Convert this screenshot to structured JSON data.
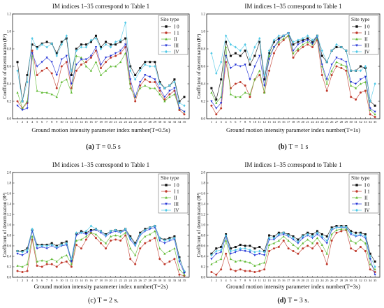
{
  "figure": {
    "legend_title": "Site type",
    "legend_entries": [
      "I 0",
      "I 1",
      "II",
      "III",
      "IV"
    ]
  },
  "colors": {
    "I0": "#111111",
    "I1": "#c0392b",
    "II": "#5cb82e",
    "III": "#1f2fd6",
    "IV": "#4fc8e6"
  },
  "chart_data": [
    {
      "type": "line",
      "panel_caption_bold": "(a)",
      "panel_caption_rest": "T = 0.5 s",
      "title": "IM indices 1–35 correspond to Table 1",
      "xlabel": "Ground motion intensity parameter index number(T=0.5s)",
      "ylabel": "Coefficient of determination (R²)",
      "ylim": [
        0,
        1.2
      ],
      "yticks": [
        "0.0",
        "0.2",
        "0.4",
        "0.6",
        "0.8",
        "1.0",
        "1.2"
      ],
      "x": [
        1,
        2,
        3,
        4,
        5,
        6,
        7,
        8,
        9,
        10,
        11,
        12,
        13,
        14,
        15,
        16,
        17,
        18,
        19,
        20,
        21,
        22,
        23,
        24,
        25,
        26,
        27,
        28,
        29,
        30,
        31,
        32,
        33,
        34,
        35
      ],
      "series": [
        {
          "name": "I 0",
          "values": [
            0.65,
            0.2,
            0.5,
            0.85,
            0.82,
            0.86,
            0.88,
            0.86,
            0.75,
            0.88,
            0.92,
            0.5,
            0.8,
            0.85,
            0.85,
            0.88,
            0.95,
            0.82,
            0.88,
            0.85,
            0.85,
            0.88,
            0.92,
            0.6,
            0.5,
            0.58,
            0.65,
            0.65,
            0.65,
            0.42,
            0.35,
            0.38,
            0.45,
            0.2,
            0.25
          ]
        },
        {
          "name": "I 1",
          "values": [
            0.2,
            0.12,
            0.18,
            0.78,
            0.5,
            0.55,
            0.58,
            0.52,
            0.35,
            0.6,
            0.65,
            0.35,
            0.55,
            0.62,
            0.65,
            0.7,
            0.78,
            0.58,
            0.65,
            0.7,
            0.72,
            0.75,
            0.82,
            0.4,
            0.2,
            0.38,
            0.45,
            0.42,
            0.42,
            0.32,
            0.22,
            0.28,
            0.32,
            0.1,
            0.05
          ]
        },
        {
          "name": "II",
          "values": [
            0.3,
            0.12,
            0.2,
            0.72,
            0.32,
            0.3,
            0.3,
            0.28,
            0.25,
            0.42,
            0.45,
            0.3,
            0.72,
            0.7,
            0.6,
            0.55,
            0.65,
            0.5,
            0.55,
            0.6,
            0.6,
            0.65,
            0.75,
            0.35,
            0.25,
            0.35,
            0.38,
            0.35,
            0.35,
            0.28,
            0.2,
            0.25,
            0.28,
            0.12,
            0.08
          ]
        },
        {
          "name": "III",
          "values": [
            0.15,
            0.1,
            0.12,
            0.75,
            0.6,
            0.65,
            0.7,
            0.65,
            0.5,
            0.68,
            0.72,
            0.4,
            0.62,
            0.68,
            0.68,
            0.72,
            0.82,
            0.62,
            0.7,
            0.72,
            0.75,
            0.78,
            0.85,
            0.45,
            0.25,
            0.42,
            0.5,
            0.48,
            0.45,
            0.35,
            0.25,
            0.32,
            0.35,
            0.12,
            0.08
          ]
        },
        {
          "name": "IV",
          "values": [
            0.55,
            0.2,
            0.42,
            0.92,
            0.8,
            0.85,
            0.82,
            0.86,
            0.72,
            0.85,
            0.95,
            0.55,
            0.78,
            0.82,
            0.82,
            0.9,
            0.92,
            0.8,
            0.85,
            0.82,
            0.88,
            0.9,
            1.1,
            0.55,
            0.45,
            0.55,
            0.62,
            0.6,
            0.6,
            0.4,
            0.35,
            0.38,
            0.42,
            0.18,
            0.15
          ]
        }
      ]
    },
    {
      "type": "line",
      "panel_caption_bold": "(b)",
      "panel_caption_rest": "T = 1 s",
      "title": "IM indices 1–35 correspond to Table 1",
      "xlabel": "Ground motion intensity parameter index number(T=1s)",
      "ylabel": "Coefficient of determination (R²)",
      "ylim": [
        0,
        1.2
      ],
      "yticks": [
        "0.0",
        "0.2",
        "0.4",
        "0.6",
        "0.8",
        "1.0",
        "1.2"
      ],
      "x": [
        1,
        2,
        3,
        4,
        5,
        6,
        7,
        8,
        9,
        10,
        11,
        12,
        13,
        14,
        15,
        16,
        17,
        18,
        19,
        20,
        21,
        22,
        23,
        24,
        25,
        26,
        27,
        28,
        29,
        30,
        31,
        32,
        33,
        34,
        35
      ],
      "series": [
        {
          "name": "I 0",
          "values": [
            0.35,
            0.22,
            0.45,
            0.88,
            0.72,
            0.75,
            0.72,
            0.78,
            0.62,
            0.72,
            0.88,
            0.45,
            0.75,
            0.88,
            0.92,
            0.95,
            0.98,
            0.85,
            0.88,
            0.9,
            0.92,
            0.88,
            0.95,
            0.72,
            0.65,
            0.78,
            0.82,
            0.82,
            0.78,
            0.55,
            0.55,
            0.6,
            0.58,
            0.2,
            0.15
          ]
        },
        {
          "name": "I 1",
          "values": [
            0.15,
            0.05,
            0.12,
            0.65,
            0.35,
            0.4,
            0.42,
            0.38,
            0.25,
            0.45,
            0.5,
            0.3,
            0.55,
            0.75,
            0.85,
            0.9,
            0.95,
            0.7,
            0.78,
            0.82,
            0.85,
            0.82,
            0.9,
            0.5,
            0.32,
            0.5,
            0.6,
            0.58,
            0.55,
            0.25,
            0.22,
            0.3,
            0.32,
            0.05,
            0.02
          ]
        },
        {
          "name": "II",
          "values": [
            0.3,
            0.18,
            0.25,
            0.82,
            0.28,
            0.25,
            0.25,
            0.3,
            0.28,
            0.45,
            0.55,
            0.3,
            0.72,
            0.82,
            0.88,
            0.92,
            0.95,
            0.75,
            0.8,
            0.85,
            0.88,
            0.85,
            0.92,
            0.6,
            0.4,
            0.55,
            0.65,
            0.62,
            0.6,
            0.38,
            0.35,
            0.4,
            0.42,
            0.1,
            0.05
          ]
        },
        {
          "name": "III",
          "values": [
            0.2,
            0.12,
            0.18,
            0.72,
            0.58,
            0.62,
            0.6,
            0.62,
            0.45,
            0.6,
            0.72,
            0.38,
            0.68,
            0.82,
            0.9,
            0.95,
            0.98,
            0.78,
            0.85,
            0.88,
            0.9,
            0.86,
            0.94,
            0.62,
            0.45,
            0.62,
            0.7,
            0.68,
            0.65,
            0.42,
            0.4,
            0.45,
            0.48,
            0.12,
            0.08
          ]
        },
        {
          "name": "IV",
          "values": [
            0.75,
            0.52,
            0.65,
            0.95,
            0.85,
            0.82,
            0.78,
            0.85,
            0.68,
            0.82,
            0.92,
            0.5,
            0.78,
            0.9,
            0.95,
            0.95,
            0.98,
            0.88,
            0.9,
            0.92,
            0.95,
            0.9,
            0.95,
            0.78,
            0.65,
            0.78,
            0.85,
            0.82,
            0.78,
            0.55,
            0.55,
            0.55,
            0.6,
            0.2,
            0.4
          ]
        }
      ]
    },
    {
      "type": "line",
      "panel_caption_bold": "",
      "panel_caption_rest": "(c) T = 2 s.",
      "title": "IM indices 1–35 correspond to Table 1",
      "xlabel": "Ground motion intensity parameter index number(T=2s)",
      "ylabel": "Coefficient of determination (R²)",
      "ylim": [
        0,
        2.0
      ],
      "yticks": [
        "0.0",
        "0.2",
        "0.4",
        "0.6",
        "0.8",
        "1.0",
        "1.2",
        "1.4",
        "1.6",
        "1.8",
        "2.0"
      ],
      "x": [
        1,
        2,
        3,
        4,
        5,
        6,
        7,
        8,
        9,
        10,
        11,
        12,
        13,
        14,
        15,
        16,
        17,
        18,
        19,
        20,
        21,
        22,
        23,
        24,
        25,
        26,
        27,
        28,
        29,
        30,
        31,
        32,
        33,
        34,
        35
      ],
      "series": [
        {
          "name": "I 0",
          "values": [
            0.5,
            0.5,
            0.55,
            0.9,
            0.62,
            0.62,
            0.62,
            0.65,
            0.6,
            0.65,
            0.68,
            0.32,
            0.82,
            0.88,
            0.85,
            0.9,
            0.92,
            0.88,
            0.82,
            0.88,
            0.9,
            0.88,
            0.92,
            0.78,
            0.65,
            0.85,
            0.92,
            0.95,
            0.98,
            0.75,
            0.72,
            0.75,
            0.78,
            0.38,
            0.1
          ]
        },
        {
          "name": "I 1",
          "values": [
            0.12,
            0.1,
            0.12,
            0.72,
            0.22,
            0.2,
            0.25,
            0.25,
            0.2,
            0.28,
            0.3,
            0.2,
            0.62,
            0.55,
            0.72,
            0.85,
            0.75,
            0.65,
            0.55,
            0.7,
            0.72,
            0.7,
            0.8,
            0.35,
            0.25,
            0.55,
            0.65,
            0.7,
            0.75,
            0.35,
            0.25,
            0.3,
            0.35,
            0.05,
            0.03
          ]
        },
        {
          "name": "II",
          "values": [
            0.22,
            0.2,
            0.25,
            0.78,
            0.3,
            0.32,
            0.3,
            0.35,
            0.3,
            0.38,
            0.42,
            0.25,
            0.7,
            0.72,
            0.78,
            0.85,
            0.82,
            0.72,
            0.65,
            0.78,
            0.8,
            0.78,
            0.85,
            0.55,
            0.42,
            0.68,
            0.78,
            0.82,
            0.88,
            0.55,
            0.45,
            0.5,
            0.55,
            0.15,
            0.05
          ]
        },
        {
          "name": "III",
          "values": [
            0.45,
            0.42,
            0.48,
            0.88,
            0.55,
            0.58,
            0.55,
            0.6,
            0.55,
            0.6,
            0.62,
            0.3,
            0.8,
            0.85,
            0.82,
            0.88,
            0.9,
            0.85,
            0.78,
            0.85,
            0.88,
            0.85,
            0.9,
            0.72,
            0.6,
            0.8,
            0.88,
            0.92,
            0.95,
            0.7,
            0.65,
            0.7,
            0.72,
            0.3,
            0.08
          ]
        },
        {
          "name": "IV",
          "values": [
            0.5,
            0.48,
            0.52,
            0.92,
            0.6,
            0.6,
            0.6,
            0.62,
            0.58,
            0.62,
            0.65,
            0.35,
            0.85,
            0.85,
            0.88,
            0.98,
            0.92,
            0.88,
            0.8,
            0.88,
            0.9,
            0.86,
            0.92,
            0.75,
            0.62,
            0.82,
            0.9,
            0.95,
            0.98,
            0.75,
            0.7,
            0.72,
            0.75,
            0.35,
            0.12
          ]
        }
      ]
    },
    {
      "type": "line",
      "panel_caption_bold": "(d)",
      "panel_caption_rest": "T = 3 s.",
      "title": "IM indices 1–35 correspond to Table 1",
      "xlabel": "Ground motion intensity parameter index number(T=3s)",
      "ylabel": "Coefficient of determination (R²)",
      "ylim": [
        0,
        2.0
      ],
      "yticks": [
        "0.0",
        "0.2",
        "0.4",
        "0.6",
        "0.8",
        "1.0",
        "1.2",
        "1.4",
        "1.6",
        "1.8",
        "2.0"
      ],
      "x": [
        1,
        2,
        3,
        4,
        5,
        6,
        7,
        8,
        9,
        10,
        11,
        12,
        13,
        14,
        15,
        16,
        17,
        18,
        19,
        20,
        21,
        22,
        23,
        24,
        25,
        26,
        27,
        28,
        29,
        30,
        31,
        32,
        33,
        34,
        35
      ],
      "series": [
        {
          "name": "I 0",
          "values": [
            0.45,
            0.55,
            0.58,
            0.82,
            0.55,
            0.58,
            0.62,
            0.6,
            0.6,
            0.55,
            0.58,
            0.5,
            0.8,
            0.78,
            0.85,
            0.85,
            0.82,
            0.78,
            0.72,
            0.8,
            0.85,
            0.82,
            0.88,
            0.82,
            0.78,
            0.95,
            0.98,
            0.98,
            0.98,
            0.88,
            0.85,
            0.85,
            0.82,
            0.45,
            0.3
          ]
        },
        {
          "name": "I 1",
          "values": [
            0.1,
            0.05,
            0.15,
            0.45,
            0.15,
            0.12,
            0.15,
            0.12,
            0.12,
            0.1,
            0.12,
            0.15,
            0.5,
            0.55,
            0.58,
            0.7,
            0.55,
            0.5,
            0.45,
            0.55,
            0.6,
            0.55,
            0.65,
            0.5,
            0.25,
            0.7,
            0.85,
            0.88,
            0.9,
            0.55,
            0.5,
            0.58,
            0.5,
            0.15,
            0.1
          ]
        },
        {
          "name": "II",
          "values": [
            0.25,
            0.3,
            0.35,
            0.7,
            0.35,
            0.3,
            0.32,
            0.3,
            0.28,
            0.22,
            0.25,
            0.28,
            0.62,
            0.65,
            0.7,
            0.78,
            0.7,
            0.62,
            0.55,
            0.65,
            0.72,
            0.65,
            0.75,
            0.62,
            0.45,
            0.82,
            0.9,
            0.92,
            0.92,
            0.7,
            0.65,
            0.72,
            0.65,
            0.25,
            0.15
          ]
        },
        {
          "name": "III",
          "values": [
            0.35,
            0.45,
            0.48,
            0.78,
            0.45,
            0.48,
            0.52,
            0.5,
            0.48,
            0.42,
            0.45,
            0.42,
            0.72,
            0.72,
            0.8,
            0.82,
            0.78,
            0.72,
            0.65,
            0.75,
            0.8,
            0.75,
            0.82,
            0.75,
            0.65,
            0.9,
            0.95,
            0.95,
            0.95,
            0.82,
            0.78,
            0.8,
            0.75,
            0.35,
            0.05
          ]
        },
        {
          "name": "IV",
          "values": [
            0.42,
            0.5,
            0.52,
            0.8,
            0.5,
            0.52,
            0.55,
            0.55,
            0.52,
            0.48,
            0.5,
            0.48,
            0.75,
            0.75,
            0.82,
            0.85,
            0.8,
            0.75,
            0.68,
            0.78,
            0.82,
            0.78,
            0.85,
            0.78,
            0.7,
            0.92,
            0.95,
            0.96,
            0.96,
            0.85,
            0.8,
            0.82,
            0.78,
            0.4,
            0.2
          ]
        }
      ]
    }
  ]
}
